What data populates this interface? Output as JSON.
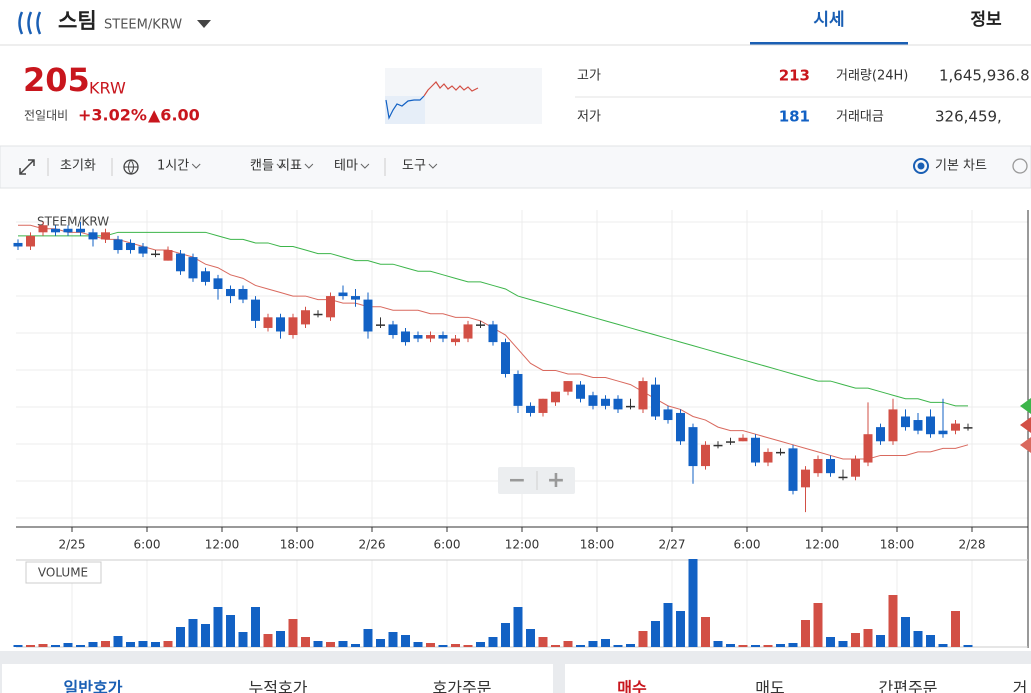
{
  "header": {
    "title": "스팀",
    "pair": "STEEM/KRW",
    "tabs": [
      "시세",
      "정보"
    ]
  },
  "summary": {
    "price": "205",
    "currency": "KRW",
    "change_label": "전일대비",
    "change_pct": "+3.02%",
    "change_abs": "▲6.00",
    "stats": [
      [
        "고가",
        "213",
        "거래량(24H)",
        "1,645,936.8"
      ],
      [
        "저가",
        "181",
        "거래대금",
        "326,459,"
      ]
    ]
  },
  "toolbar": {
    "items": [
      "초기화",
      "1시간",
      "캔들",
      "지표",
      "테마",
      "도구"
    ],
    "chart_mode": "기본 차트"
  },
  "chart_data": {
    "type": "candlestick",
    "title": "STEEM/KRW",
    "volume_title": "VOLUME",
    "up_color": "#d24f45",
    "down_color": "#1261c4",
    "xticks": [
      "2/25",
      "6:00",
      "12:00",
      "18:00",
      "2/26",
      "6:00",
      "12:00",
      "18:00",
      "2/27",
      "6:00",
      "12:00",
      "18:00",
      "2/28"
    ],
    "ylim": [
      176.8,
      266.3
    ],
    "vlim": [
      0,
      90
    ],
    "ohlc": [
      [
        257,
        258,
        255,
        256
      ],
      [
        256,
        260,
        255,
        259
      ],
      [
        260,
        263,
        259,
        262
      ],
      [
        261,
        262,
        259,
        260
      ],
      [
        261,
        262,
        259,
        260
      ],
      [
        261,
        263,
        259,
        260
      ],
      [
        260,
        261,
        256,
        258
      ],
      [
        258,
        261,
        257,
        260
      ],
      [
        258,
        259,
        254,
        255
      ],
      [
        257,
        258,
        254,
        255
      ],
      [
        256,
        257,
        253,
        254
      ],
      [
        254,
        255,
        253,
        254
      ],
      [
        252,
        256,
        252,
        255
      ],
      [
        254,
        255,
        248,
        249
      ],
      [
        253,
        254,
        246,
        247
      ],
      [
        249,
        250,
        245,
        246
      ],
      [
        247,
        248,
        241,
        244
      ],
      [
        244,
        245,
        240,
        242
      ],
      [
        244,
        245,
        240,
        241
      ],
      [
        241,
        242,
        233,
        235
      ],
      [
        233,
        237,
        232,
        236
      ],
      [
        236,
        237,
        230,
        232
      ],
      [
        231,
        237,
        230,
        236
      ],
      [
        234,
        239,
        233,
        238
      ],
      [
        237,
        238,
        236,
        237
      ],
      [
        236,
        243,
        235,
        242
      ],
      [
        243,
        245,
        241,
        242
      ],
      [
        242,
        244,
        239,
        241
      ],
      [
        241,
        243,
        230,
        232
      ],
      [
        234,
        236,
        233,
        234
      ],
      [
        234,
        235,
        230,
        231
      ],
      [
        232,
        233,
        228,
        229
      ],
      [
        231,
        232,
        229,
        230
      ],
      [
        230,
        232,
        229,
        231
      ],
      [
        231,
        232,
        229,
        230
      ],
      [
        229,
        231,
        228,
        230
      ],
      [
        230,
        235,
        229,
        234
      ],
      [
        234,
        235,
        233,
        234
      ],
      [
        234,
        235,
        228,
        229
      ],
      [
        229,
        230,
        219,
        220
      ],
      [
        220,
        221,
        209,
        211
      ],
      [
        211,
        212,
        208,
        209
      ],
      [
        209,
        213,
        208,
        213
      ],
      [
        212,
        215,
        211,
        215
      ],
      [
        215,
        218,
        214,
        218
      ],
      [
        217,
        218,
        212,
        213
      ],
      [
        214,
        215,
        210,
        211
      ],
      [
        213,
        214,
        210,
        211
      ],
      [
        213,
        214,
        209,
        210
      ],
      [
        211,
        213,
        210,
        211
      ],
      [
        210,
        219,
        209,
        218
      ],
      [
        217,
        219,
        207,
        208
      ],
      [
        210,
        211,
        206,
        207
      ],
      [
        209,
        210,
        200,
        201
      ],
      [
        205,
        206,
        189,
        194
      ],
      [
        194,
        201,
        193,
        200
      ],
      [
        200,
        201,
        199,
        200
      ],
      [
        201,
        202,
        200,
        201
      ],
      [
        201,
        203,
        201,
        202
      ],
      [
        202,
        203,
        194,
        195
      ],
      [
        195,
        199,
        194,
        198
      ],
      [
        198,
        199,
        197,
        198
      ],
      [
        199,
        200,
        186,
        187
      ],
      [
        188,
        194,
        181,
        193
      ],
      [
        192,
        197,
        191,
        196
      ],
      [
        196,
        197,
        191,
        192
      ],
      [
        191,
        193,
        190,
        191
      ],
      [
        191,
        197,
        190,
        196
      ],
      [
        195,
        212,
        194,
        203
      ],
      [
        205,
        206,
        200,
        201
      ],
      [
        201,
        213,
        200,
        210
      ],
      [
        208,
        210,
        204,
        205
      ],
      [
        207,
        209,
        203,
        204
      ],
      [
        208,
        210,
        202,
        203
      ],
      [
        204,
        213,
        202,
        203
      ],
      [
        204,
        207,
        203,
        206
      ],
      [
        205,
        206,
        204,
        205
      ]
    ],
    "volume": [
      2,
      2,
      3,
      2,
      4,
      2,
      5,
      6,
      11,
      5,
      6,
      5,
      6,
      20,
      28,
      23,
      40,
      32,
      15,
      40,
      13,
      16,
      28,
      10,
      6,
      5,
      6,
      3,
      18,
      8,
      15,
      12,
      5,
      4,
      2,
      3,
      2,
      5,
      10,
      24,
      40,
      18,
      10,
      2,
      6,
      2,
      6,
      8,
      2,
      3,
      16,
      26,
      44,
      36,
      88,
      30,
      6,
      3,
      2,
      2,
      2,
      3,
      4,
      27,
      44,
      10,
      6,
      14,
      18,
      12,
      52,
      30,
      16,
      12,
      3,
      36,
      2
    ],
    "series": [
      {
        "color": "#3cb54a",
        "values": [
          259,
          259,
          259,
          259,
          259,
          259,
          259,
          259,
          260,
          260,
          260,
          260,
          260,
          260,
          260,
          260,
          259,
          258,
          258,
          257,
          257,
          256,
          256,
          255,
          254,
          254,
          253,
          252,
          252,
          251,
          251,
          250,
          249,
          249,
          248,
          247,
          246,
          246,
          245,
          244,
          242,
          241,
          240,
          239,
          238,
          237,
          236,
          235,
          234,
          233,
          232,
          231,
          230,
          229,
          228,
          227,
          226,
          225,
          224,
          223,
          222,
          221,
          220,
          219,
          218,
          218,
          217,
          216,
          216,
          215,
          214,
          213,
          213,
          212,
          212,
          211,
          211
        ]
      },
      {
        "color": "#d9695e",
        "values": [
          262,
          262,
          261,
          261,
          260,
          260,
          259,
          258,
          258,
          257,
          256,
          255,
          255,
          254,
          253,
          251,
          250,
          248,
          247,
          245,
          244,
          243,
          242,
          242,
          241,
          241,
          240,
          240,
          239,
          239,
          238,
          238,
          238,
          237,
          237,
          236,
          236,
          235,
          233,
          231,
          227,
          223,
          221,
          221,
          220,
          220,
          219,
          219,
          218,
          217,
          215,
          213,
          211,
          210,
          208,
          207,
          205,
          204,
          204,
          203,
          202,
          201,
          200,
          199,
          198,
          197,
          196,
          196,
          196,
          197,
          197,
          197,
          198,
          198,
          199,
          199,
          200
        ]
      }
    ],
    "zoom": [
      "−",
      "+"
    ]
  },
  "orderbook_tabs": [
    "일반호가",
    "누적호가",
    "호가주문",
    "매수",
    "매도",
    "간편주문",
    "거"
  ]
}
